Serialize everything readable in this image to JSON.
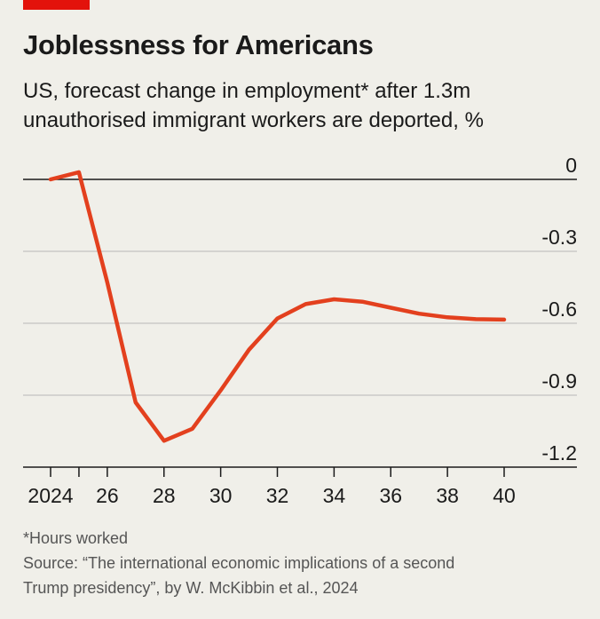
{
  "title": "Joblessness for Americans",
  "subtitle": {
    "line1": "US, forecast change in employment* after 1.3m",
    "line2": "unauthorised immigrant workers are deported, %"
  },
  "footnote": {
    "note": "*Hours worked",
    "source_line1": "Source: “The international economic implications of a second",
    "source_line2": "Trump presidency”, by W. McKibbin et al., 2024"
  },
  "colors": {
    "accent": "#e3120b",
    "line": "#e3401e",
    "background": "#f0efe9",
    "grid": "#b7b7b7",
    "axis": "#1a1a1a"
  },
  "chart_data": {
    "type": "line",
    "x": [
      2024,
      2025,
      2026,
      2027,
      2028,
      2029,
      2030,
      2031,
      2032,
      2033,
      2034,
      2035,
      2036,
      2037,
      2038,
      2039,
      2040
    ],
    "series": [
      {
        "values": [
          0,
          0.03,
          -0.43,
          -0.93,
          -1.09,
          -1.04,
          -0.88,
          -0.71,
          -0.58,
          -0.52,
          -0.5,
          -0.51,
          -0.535,
          -0.56,
          -0.575,
          -0.583,
          -0.585
        ]
      }
    ],
    "xlim": [
      2023.9,
      2040.7
    ],
    "ylim": [
      -1.2,
      0.05
    ],
    "x_ticks": [
      2024,
      2025,
      2026,
      2028,
      2030,
      2032,
      2034,
      2036,
      2038,
      2040
    ],
    "x_tick_labels": [
      {
        "x": 2024,
        "label": "2024"
      },
      {
        "x": 2026,
        "label": "26"
      },
      {
        "x": 2028,
        "label": "28"
      },
      {
        "x": 2030,
        "label": "30"
      },
      {
        "x": 2032,
        "label": "32"
      },
      {
        "x": 2034,
        "label": "34"
      },
      {
        "x": 2036,
        "label": "36"
      },
      {
        "x": 2038,
        "label": "38"
      },
      {
        "x": 2040,
        "label": "40"
      }
    ],
    "y_ticks": [
      0,
      -0.3,
      -0.6,
      -0.9,
      -1.2
    ],
    "y_tick_labels": [
      "0",
      "-0.3",
      "-0.6",
      "-0.9",
      "-1.2"
    ],
    "y_axis_side": "right",
    "grid": true,
    "zero_line": true
  }
}
